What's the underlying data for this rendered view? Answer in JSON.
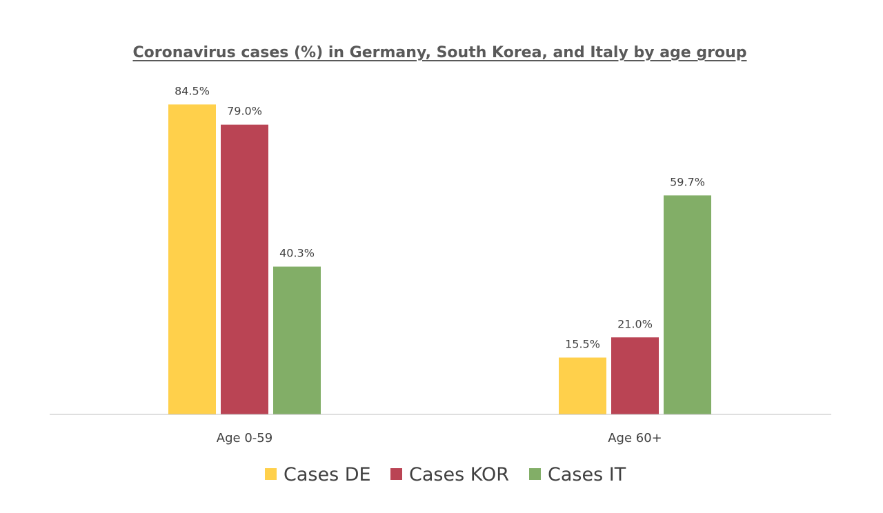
{
  "chart_data": {
    "type": "bar",
    "title": "Coronavirus cases (%) in Germany, South Korea, and Italy by age group",
    "categories": [
      "Age 0-59",
      "Age 60+"
    ],
    "series": [
      {
        "name": "Cases DE",
        "values": [
          84.5,
          15.5
        ],
        "labels": [
          "84.5%",
          "15.5%"
        ],
        "color": "#FFD04B"
      },
      {
        "name": "Cases KOR",
        "values": [
          79.0,
          21.0
        ],
        "labels": [
          "79.0%",
          "21.0%"
        ],
        "color": "#BA4454"
      },
      {
        "name": "Cases IT",
        "values": [
          40.3,
          59.7
        ],
        "labels": [
          "40.3%",
          "59.7%"
        ],
        "color": "#82AE67"
      }
    ],
    "ylim": [
      0,
      100
    ],
    "grid": false,
    "legend_position": "bottom",
    "axis_color": "#bfbfbf"
  }
}
